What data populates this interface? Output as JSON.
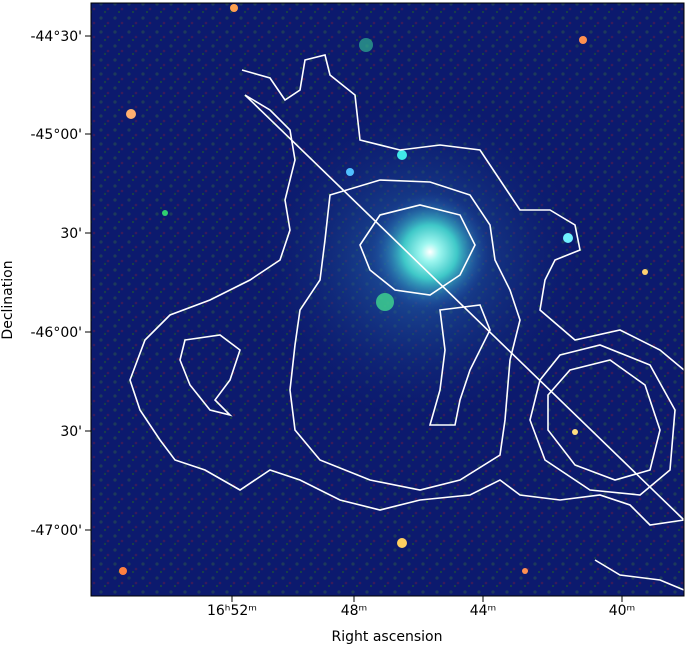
{
  "figure": {
    "x_axis": {
      "label": "Right ascension",
      "ticks": [
        "16ʰ52ᵐ",
        "48ᵐ",
        "44ᵐ",
        "40ᵐ"
      ]
    },
    "y_axis": {
      "label": "Declination",
      "ticks": [
        "-44°30'",
        "-45°00'",
        "30'",
        "-46°00'",
        "30'",
        "-47°00'"
      ]
    }
  }
}
